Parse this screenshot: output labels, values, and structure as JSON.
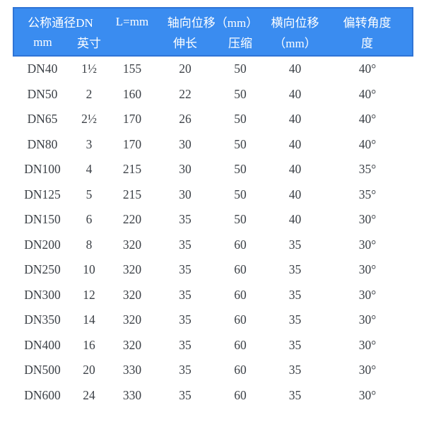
{
  "chart_data": {
    "type": "table",
    "header_row1": [
      {
        "label": "公称通径DN",
        "colspan": 2
      },
      {
        "label": "L=mm",
        "colspan": 1
      },
      {
        "label": "轴向位移（mm）",
        "colspan": 2
      },
      {
        "label": "横向位移",
        "colspan": 1
      },
      {
        "label": "偏转角度",
        "colspan": 1
      }
    ],
    "header_row2": [
      "mm",
      "英寸",
      "",
      "伸长",
      "压缩",
      "（mm）",
      "度"
    ],
    "rows": [
      [
        "DN40",
        "1½",
        "155",
        "20",
        "50",
        "40",
        "40°"
      ],
      [
        "DN50",
        "2",
        "160",
        "22",
        "50",
        "40",
        "40°"
      ],
      [
        "DN65",
        "2½",
        "170",
        "26",
        "50",
        "40",
        "40°"
      ],
      [
        "DN80",
        "3",
        "170",
        "30",
        "50",
        "40",
        "40°"
      ],
      [
        "DN100",
        "4",
        "215",
        "30",
        "50",
        "40",
        "35°"
      ],
      [
        "DN125",
        "5",
        "215",
        "30",
        "50",
        "40",
        "35°"
      ],
      [
        "DN150",
        "6",
        "220",
        "35",
        "50",
        "40",
        "30°"
      ],
      [
        "DN200",
        "8",
        "320",
        "35",
        "60",
        "35",
        "30°"
      ],
      [
        "DN250",
        "10",
        "320",
        "35",
        "60",
        "35",
        "30°"
      ],
      [
        "DN300",
        "12",
        "320",
        "35",
        "60",
        "35",
        "30°"
      ],
      [
        "DN350",
        "14",
        "320",
        "35",
        "60",
        "35",
        "30°"
      ],
      [
        "DN400",
        "16",
        "320",
        "35",
        "60",
        "35",
        "30°"
      ],
      [
        "DN500",
        "20",
        "330",
        "35",
        "60",
        "35",
        "30°"
      ],
      [
        "DN600",
        "24",
        "330",
        "35",
        "60",
        "35",
        "30°"
      ]
    ]
  },
  "colors": {
    "header_bg": "#3a8cf0",
    "header_border": "#2f74d6",
    "header_text": "#ffffff",
    "body_text": "#3c4147",
    "page_bg": "#ffffff"
  }
}
